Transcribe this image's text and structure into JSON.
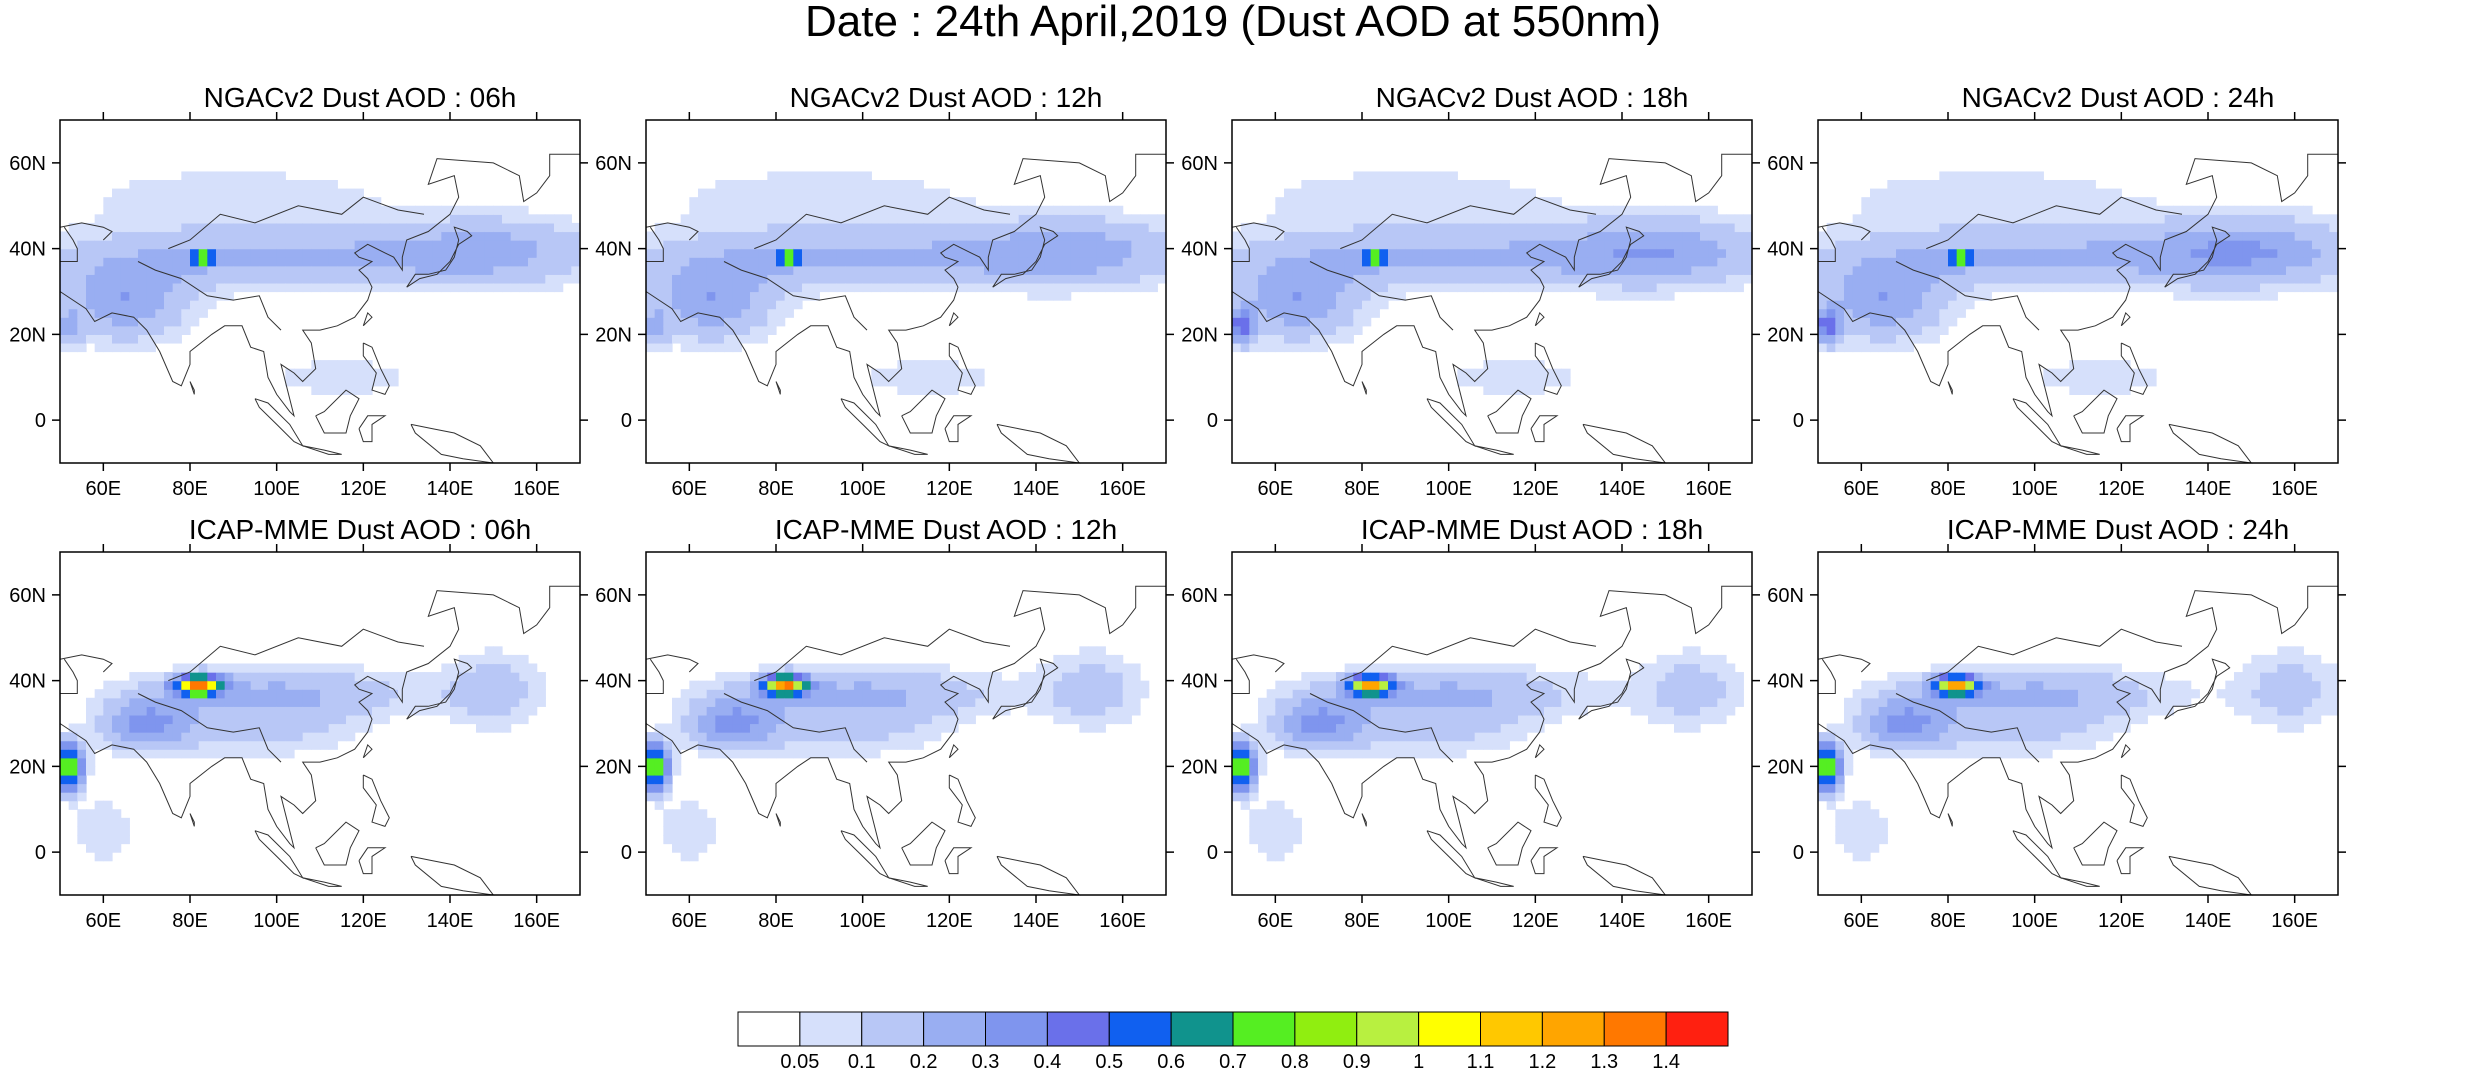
{
  "title": "Date : 24th April,2019 (Dust AOD at 550nm)",
  "panels": [
    {
      "title": "NGACv2 Dust AOD : 06h"
    },
    {
      "title": "NGACv2 Dust AOD : 12h"
    },
    {
      "title": "NGACv2 Dust AOD : 18h"
    },
    {
      "title": "NGACv2 Dust AOD : 24h"
    },
    {
      "title": "ICAP-MME Dust AOD : 06h"
    },
    {
      "title": "ICAP-MME Dust AOD : 12h"
    },
    {
      "title": "ICAP-MME Dust AOD : 18h"
    },
    {
      "title": "ICAP-MME Dust AOD : 24h"
    }
  ],
  "chart_data": {
    "type": "heatmap",
    "variable": "Dust AOD at 550nm",
    "x_ticks": [
      "60E",
      "80E",
      "100E",
      "120E",
      "140E",
      "160E"
    ],
    "y_ticks": [
      "60N",
      "40N",
      "20N",
      "0"
    ],
    "xlim": [
      50,
      170
    ],
    "ylim": [
      -10,
      70
    ],
    "colorbar": {
      "levels": [
        "0.05",
        "0.1",
        "0.2",
        "0.3",
        "0.4",
        "0.5",
        "0.6",
        "0.7",
        "0.8",
        "0.9",
        "1",
        "1.1",
        "1.2",
        "1.3",
        "1.4"
      ],
      "colors": [
        "#ffffff",
        "#d6e0fb",
        "#b8c7f6",
        "#99aef2",
        "#7f95ee",
        "#6a70ea",
        "#1060f0",
        "#10938d",
        "#55ee22",
        "#90ee10",
        "#b8f040",
        "#ffff00",
        "#ffc800",
        "#ffa500",
        "#ff7800",
        "#ff2010"
      ]
    }
  }
}
